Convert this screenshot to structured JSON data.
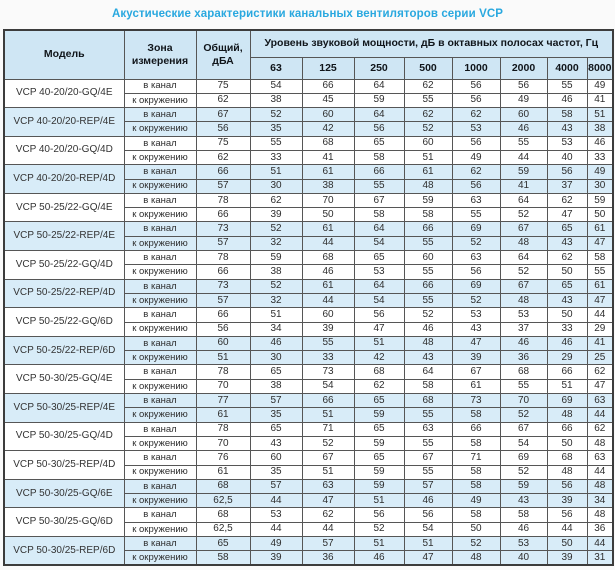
{
  "page": {
    "title": "Акустические характеристики канальных вентиляторов серии VCP"
  },
  "table": {
    "headers": {
      "model": "Модель",
      "zone": "Зона измерения",
      "total": "Общий, дБА",
      "freq_group": "Уровень звуковой мощности, дБ в октавных полосах частот, Гц",
      "frequencies": [
        "63",
        "125",
        "250",
        "500",
        "1000",
        "2000",
        "4000",
        "8000"
      ]
    },
    "zone_labels": {
      "in_duct": "в канал",
      "to_surroundings": "к окружению"
    },
    "models": [
      {
        "name": "VCP 40-20/20-GQ/4E",
        "tint": false,
        "rows": [
          {
            "zone": "в канал",
            "total": "75",
            "bands": [
              "54",
              "66",
              "64",
              "62",
              "56",
              "56",
              "55",
              "49"
            ]
          },
          {
            "zone": "к окружению",
            "total": "62",
            "bands": [
              "38",
              "45",
              "59",
              "55",
              "56",
              "49",
              "46",
              "41"
            ]
          }
        ]
      },
      {
        "name": "VCP 40-20/20-REP/4E",
        "tint": true,
        "rows": [
          {
            "zone": "в канал",
            "total": "67",
            "bands": [
              "52",
              "60",
              "64",
              "62",
              "62",
              "60",
              "58",
              "51"
            ]
          },
          {
            "zone": "к окружению",
            "total": "56",
            "bands": [
              "35",
              "42",
              "56",
              "52",
              "53",
              "46",
              "43",
              "38"
            ]
          }
        ]
      },
      {
        "name": "VCP 40-20/20-GQ/4D",
        "tint": false,
        "rows": [
          {
            "zone": "в канал",
            "total": "75",
            "bands": [
              "55",
              "68",
              "65",
              "60",
              "56",
              "55",
              "53",
              "46"
            ]
          },
          {
            "zone": "к окружению",
            "total": "62",
            "bands": [
              "33",
              "41",
              "58",
              "51",
              "49",
              "44",
              "40",
              "33"
            ]
          }
        ]
      },
      {
        "name": "VCP 40-20/20-REP/4D",
        "tint": true,
        "rows": [
          {
            "zone": "в канал",
            "total": "66",
            "bands": [
              "51",
              "61",
              "66",
              "61",
              "62",
              "59",
              "56",
              "49"
            ]
          },
          {
            "zone": "к окружению",
            "total": "57",
            "bands": [
              "30",
              "38",
              "55",
              "48",
              "56",
              "41",
              "37",
              "30"
            ]
          }
        ]
      },
      {
        "name": "VCP 50-25/22-GQ/4E",
        "tint": false,
        "rows": [
          {
            "zone": "в канал",
            "total": "78",
            "bands": [
              "62",
              "70",
              "67",
              "59",
              "63",
              "64",
              "62",
              "59"
            ]
          },
          {
            "zone": "к окружению",
            "total": "66",
            "bands": [
              "39",
              "50",
              "58",
              "58",
              "55",
              "52",
              "47",
              "50"
            ]
          }
        ]
      },
      {
        "name": "VCP 50-25/22-REP/4E",
        "tint": true,
        "rows": [
          {
            "zone": "в канал",
            "total": "73",
            "bands": [
              "52",
              "61",
              "64",
              "66",
              "69",
              "67",
              "65",
              "61"
            ]
          },
          {
            "zone": "к окружению",
            "total": "57",
            "bands": [
              "32",
              "44",
              "54",
              "55",
              "52",
              "48",
              "43",
              "47"
            ]
          }
        ]
      },
      {
        "name": "VCP 50-25/22-GQ/4D",
        "tint": false,
        "rows": [
          {
            "zone": "в канал",
            "total": "78",
            "bands": [
              "59",
              "68",
              "65",
              "60",
              "63",
              "64",
              "62",
              "58"
            ]
          },
          {
            "zone": "к окружению",
            "total": "66",
            "bands": [
              "38",
              "46",
              "53",
              "55",
              "56",
              "52",
              "50",
              "55"
            ]
          }
        ]
      },
      {
        "name": "VCP 50-25/22-REP/4D",
        "tint": true,
        "rows": [
          {
            "zone": "в канал",
            "total": "73",
            "bands": [
              "52",
              "61",
              "64",
              "66",
              "69",
              "67",
              "65",
              "61"
            ]
          },
          {
            "zone": "к окружению",
            "total": "57",
            "bands": [
              "32",
              "44",
              "54",
              "55",
              "52",
              "48",
              "43",
              "47"
            ]
          }
        ]
      },
      {
        "name": "VCP 50-25/22-GQ/6D",
        "tint": false,
        "rows": [
          {
            "zone": "в канал",
            "total": "66",
            "bands": [
              "51",
              "60",
              "56",
              "52",
              "53",
              "53",
              "50",
              "44"
            ]
          },
          {
            "zone": "к окружению",
            "total": "56",
            "bands": [
              "34",
              "39",
              "47",
              "46",
              "43",
              "37",
              "33",
              "29"
            ]
          }
        ]
      },
      {
        "name": "VCP 50-25/22-REP/6D",
        "tint": true,
        "rows": [
          {
            "zone": "в канал",
            "total": "60",
            "bands": [
              "46",
              "55",
              "51",
              "48",
              "47",
              "46",
              "46",
              "41"
            ]
          },
          {
            "zone": "к окружению",
            "total": "51",
            "bands": [
              "30",
              "33",
              "42",
              "43",
              "39",
              "36",
              "29",
              "25"
            ]
          }
        ]
      },
      {
        "name": "VCP 50-30/25-GQ/4E",
        "tint": false,
        "rows": [
          {
            "zone": "в канал",
            "total": "78",
            "bands": [
              "65",
              "73",
              "68",
              "64",
              "67",
              "68",
              "66",
              "62"
            ]
          },
          {
            "zone": "к окружению",
            "total": "70",
            "bands": [
              "38",
              "54",
              "62",
              "58",
              "61",
              "55",
              "51",
              "47"
            ]
          }
        ]
      },
      {
        "name": "VCP 50-30/25-REP/4E",
        "tint": true,
        "rows": [
          {
            "zone": "в канал",
            "total": "77",
            "bands": [
              "57",
              "66",
              "65",
              "68",
              "73",
              "70",
              "69",
              "63"
            ]
          },
          {
            "zone": "к окружению",
            "total": "61",
            "bands": [
              "35",
              "51",
              "59",
              "55",
              "58",
              "52",
              "48",
              "44"
            ]
          }
        ]
      },
      {
        "name": "VCP 50-30/25-GQ/4D",
        "tint": false,
        "rows": [
          {
            "zone": "в канал",
            "total": "78",
            "bands": [
              "65",
              "71",
              "65",
              "63",
              "66",
              "67",
              "66",
              "62"
            ]
          },
          {
            "zone": "к окружению",
            "total": "70",
            "bands": [
              "43",
              "52",
              "59",
              "55",
              "58",
              "54",
              "50",
              "48"
            ]
          }
        ]
      },
      {
        "name": "VCP 50-30/25-REP/4D",
        "tint": false,
        "rows": [
          {
            "zone": "в канал",
            "total": "76",
            "bands": [
              "60",
              "67",
              "65",
              "67",
              "71",
              "69",
              "68",
              "63"
            ]
          },
          {
            "zone": "к окружению",
            "total": "61",
            "bands": [
              "35",
              "51",
              "59",
              "55",
              "58",
              "52",
              "48",
              "44"
            ]
          }
        ]
      },
      {
        "name": "VCP 50-30/25-GQ/6E",
        "tint": true,
        "rows": [
          {
            "zone": "в канал",
            "total": "68",
            "bands": [
              "57",
              "63",
              "59",
              "57",
              "58",
              "59",
              "56",
              "48"
            ]
          },
          {
            "zone": "к окружению",
            "total": "62,5",
            "bands": [
              "44",
              "47",
              "51",
              "46",
              "49",
              "43",
              "39",
              "34"
            ]
          }
        ]
      },
      {
        "name": "VCP 50-30/25-GQ/6D",
        "tint": false,
        "rows": [
          {
            "zone": "в канал",
            "total": "68",
            "bands": [
              "53",
              "62",
              "56",
              "56",
              "58",
              "58",
              "56",
              "48"
            ]
          },
          {
            "zone": "к окружению",
            "total": "62,5",
            "bands": [
              "44",
              "44",
              "52",
              "54",
              "50",
              "46",
              "44",
              "36"
            ]
          }
        ]
      },
      {
        "name": "VCP 50-30/25-REP/6D",
        "tint": true,
        "rows": [
          {
            "zone": "в канал",
            "total": "65",
            "bands": [
              "49",
              "57",
              "51",
              "51",
              "52",
              "53",
              "50",
              "44"
            ]
          },
          {
            "zone": "к окружению",
            "total": "58",
            "bands": [
              "39",
              "36",
              "46",
              "47",
              "48",
              "40",
              "39",
              "31"
            ]
          }
        ]
      }
    ]
  },
  "colors": {
    "title_accent": "#29a8df",
    "header_bg": "#cfe6f4",
    "row_tint": "#d8ecf8",
    "border": "#565656",
    "text": "#2e2e2e"
  }
}
